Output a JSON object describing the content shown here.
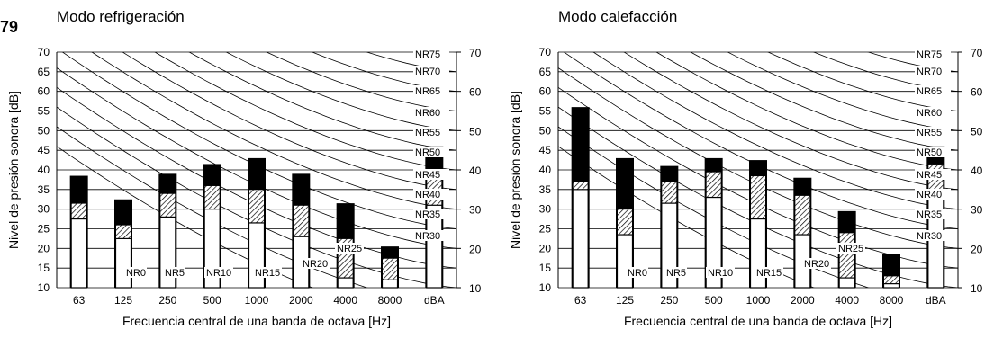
{
  "page": {
    "figure_label": "79"
  },
  "chart_data": [
    {
      "type": "bar",
      "title": "Modo refrigeración",
      "xlabel": "Frecuencia central de una banda de octava [Hz]",
      "ylabel": "Nivel de presión sonora [dB]",
      "ylim": [
        10,
        70
      ],
      "yticks": [
        10,
        15,
        20,
        25,
        30,
        35,
        40,
        45,
        50,
        55,
        60,
        65,
        70
      ],
      "right_yticks": [
        10,
        20,
        30,
        40,
        50,
        60,
        70
      ],
      "categories": [
        "63",
        "125",
        "250",
        "500",
        "1000",
        "2000",
        "4000",
        "8000",
        "dBA"
      ],
      "series": [
        {
          "style": "white",
          "values": [
            27.5,
            22.5,
            28,
            30,
            26.5,
            23,
            12.5,
            12,
            31
          ]
        },
        {
          "style": "hatched",
          "values": [
            31.5,
            26,
            34,
            36,
            35,
            31,
            22.5,
            17.5,
            38.5
          ]
        },
        {
          "style": "black",
          "values": [
            38.5,
            32.5,
            39,
            41.5,
            43,
            39,
            31.5,
            20.5,
            46
          ]
        }
      ],
      "nr_curves": [
        "NR75",
        "NR70",
        "NR65",
        "NR60",
        "NR55",
        "NR50",
        "NR45",
        "NR40",
        "NR35",
        "NR30",
        "NR25",
        "NR20",
        "NR15",
        "NR10",
        "NR5",
        "NR0"
      ],
      "grid": true
    },
    {
      "type": "bar",
      "title": "Modo calefacción",
      "xlabel": "Frecuencia central de una banda de octava [Hz]",
      "ylabel": "Nivel de presión sonora [dB]",
      "ylim": [
        10,
        70
      ],
      "yticks": [
        10,
        15,
        20,
        25,
        30,
        35,
        40,
        45,
        50,
        55,
        60,
        65,
        70
      ],
      "right_yticks": [
        10,
        20,
        30,
        40,
        50,
        60,
        70
      ],
      "categories": [
        "63",
        "125",
        "250",
        "500",
        "1000",
        "2000",
        "4000",
        "8000",
        "dBA"
      ],
      "series": [
        {
          "style": "white",
          "values": [
            35,
            23.5,
            31.5,
            33,
            27.5,
            23.5,
            12.5,
            11,
            33
          ]
        },
        {
          "style": "hatched",
          "values": [
            37,
            30,
            37,
            39.5,
            38.5,
            33.5,
            24,
            13,
            41.5
          ]
        },
        {
          "style": "black",
          "values": [
            56,
            43,
            41,
            43,
            42.5,
            38,
            29.5,
            18.5,
            46
          ]
        }
      ],
      "nr_curves": [
        "NR75",
        "NR70",
        "NR65",
        "NR60",
        "NR55",
        "NR50",
        "NR45",
        "NR40",
        "NR35",
        "NR30",
        "NR25",
        "NR20",
        "NR15",
        "NR10",
        "NR5",
        "NR0"
      ],
      "grid": true
    }
  ]
}
